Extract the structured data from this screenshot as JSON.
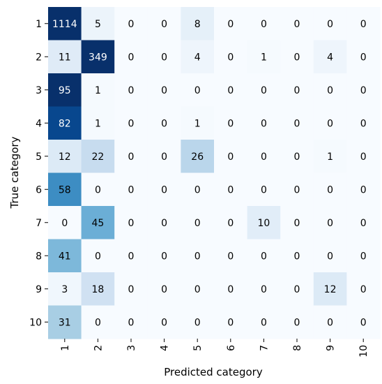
{
  "chart_data": {
    "type": "heatmap",
    "title": "",
    "xlabel": "Predicted category",
    "ylabel": "True category",
    "x_categories": [
      "1",
      "2",
      "3",
      "4",
      "5",
      "6",
      "7",
      "8",
      "9",
      "10"
    ],
    "y_categories": [
      "1",
      "2",
      "3",
      "4",
      "5",
      "6",
      "7",
      "8",
      "9",
      "10"
    ],
    "values": [
      [
        1114,
        5,
        0,
        0,
        8,
        0,
        0,
        0,
        0,
        0
      ],
      [
        11,
        349,
        0,
        0,
        4,
        0,
        1,
        0,
        4,
        0
      ],
      [
        95,
        1,
        0,
        0,
        0,
        0,
        0,
        0,
        0,
        0
      ],
      [
        82,
        1,
        0,
        0,
        1,
        0,
        0,
        0,
        0,
        0
      ],
      [
        12,
        22,
        0,
        0,
        26,
        0,
        0,
        0,
        1,
        0
      ],
      [
        58,
        0,
        0,
        0,
        0,
        0,
        0,
        0,
        0,
        0
      ],
      [
        0,
        45,
        0,
        0,
        0,
        0,
        10,
        0,
        0,
        0
      ],
      [
        41,
        0,
        0,
        0,
        0,
        0,
        0,
        0,
        0,
        0
      ],
      [
        3,
        18,
        0,
        0,
        0,
        0,
        0,
        0,
        12,
        0
      ],
      [
        31,
        0,
        0,
        0,
        0,
        0,
        0,
        0,
        0,
        0
      ]
    ],
    "colormap": "Blues",
    "color_range": [
      0,
      90
    ],
    "colorbar": false,
    "grid": false,
    "legend": "none"
  }
}
